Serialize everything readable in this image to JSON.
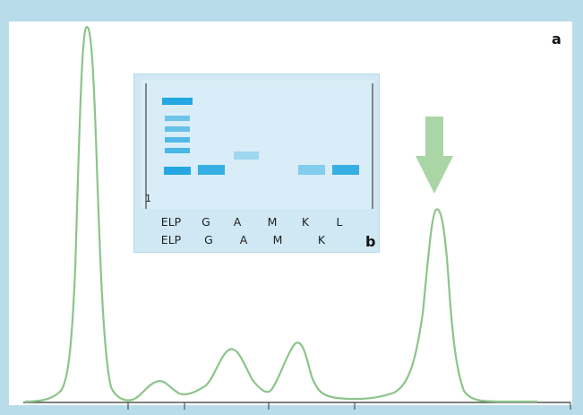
{
  "panel_a_label": "a",
  "panel_b_label": "b",
  "gel": {
    "lane_number": "1",
    "lane_labels_row1": [
      "ELP",
      "G",
      "A",
      "M",
      "K",
      "L"
    ],
    "lane_labels_row2": [
      "ELP",
      "G",
      "A",
      "M",
      "K"
    ]
  },
  "colors": {
    "background": "#b9dcea",
    "trace": "#8cc48a",
    "arrow": "#a9d6a4",
    "gel_background": "#cfe8f4",
    "band": "#1aa3e0"
  },
  "icons": [
    "down-arrow-icon"
  ]
}
